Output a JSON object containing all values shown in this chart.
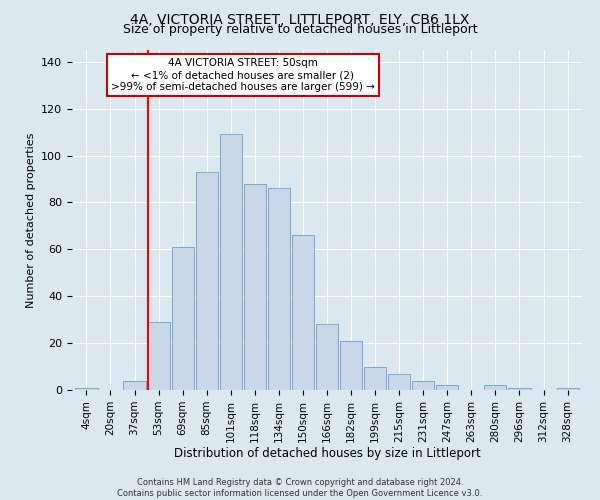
{
  "title": "4A, VICTORIA STREET, LITTLEPORT, ELY, CB6 1LX",
  "subtitle": "Size of property relative to detached houses in Littleport",
  "xlabel": "Distribution of detached houses by size in Littleport",
  "ylabel": "Number of detached properties",
  "bar_labels": [
    "4sqm",
    "20sqm",
    "37sqm",
    "53sqm",
    "69sqm",
    "85sqm",
    "101sqm",
    "118sqm",
    "134sqm",
    "150sqm",
    "166sqm",
    "182sqm",
    "199sqm",
    "215sqm",
    "231sqm",
    "247sqm",
    "263sqm",
    "280sqm",
    "296sqm",
    "312sqm",
    "328sqm"
  ],
  "bar_heights": [
    1,
    0,
    4,
    29,
    61,
    93,
    109,
    88,
    86,
    66,
    28,
    21,
    10,
    7,
    4,
    2,
    0,
    2,
    1,
    0,
    1
  ],
  "bar_color": "#c8d8ea",
  "bar_edgecolor": "#7aaac8",
  "vline_color": "red",
  "vline_index": 3,
  "bar_width": 0.92,
  "ylim": [
    0,
    145
  ],
  "yticks": [
    0,
    20,
    40,
    60,
    80,
    100,
    120,
    140
  ],
  "annotation_title": "4A VICTORIA STREET: 50sqm",
  "annotation_line1": "← <1% of detached houses are smaller (2)",
  "annotation_line2": ">99% of semi-detached houses are larger (599) →",
  "annotation_box_facecolor": "#ffffff",
  "annotation_box_edgecolor": "#cc0000",
  "footer1": "Contains HM Land Registry data © Crown copyright and database right 2024.",
  "footer2": "Contains public sector information licensed under the Open Government Licence v3.0.",
  "bg_color": "#dce8f0",
  "plot_bg_color": "#dce8f0",
  "title_fontsize": 10,
  "subtitle_fontsize": 9,
  "xlabel_fontsize": 8.5,
  "ylabel_fontsize": 8,
  "tick_fontsize": 7.5,
  "footer_fontsize": 6,
  "annotation_fontsize": 7.5
}
